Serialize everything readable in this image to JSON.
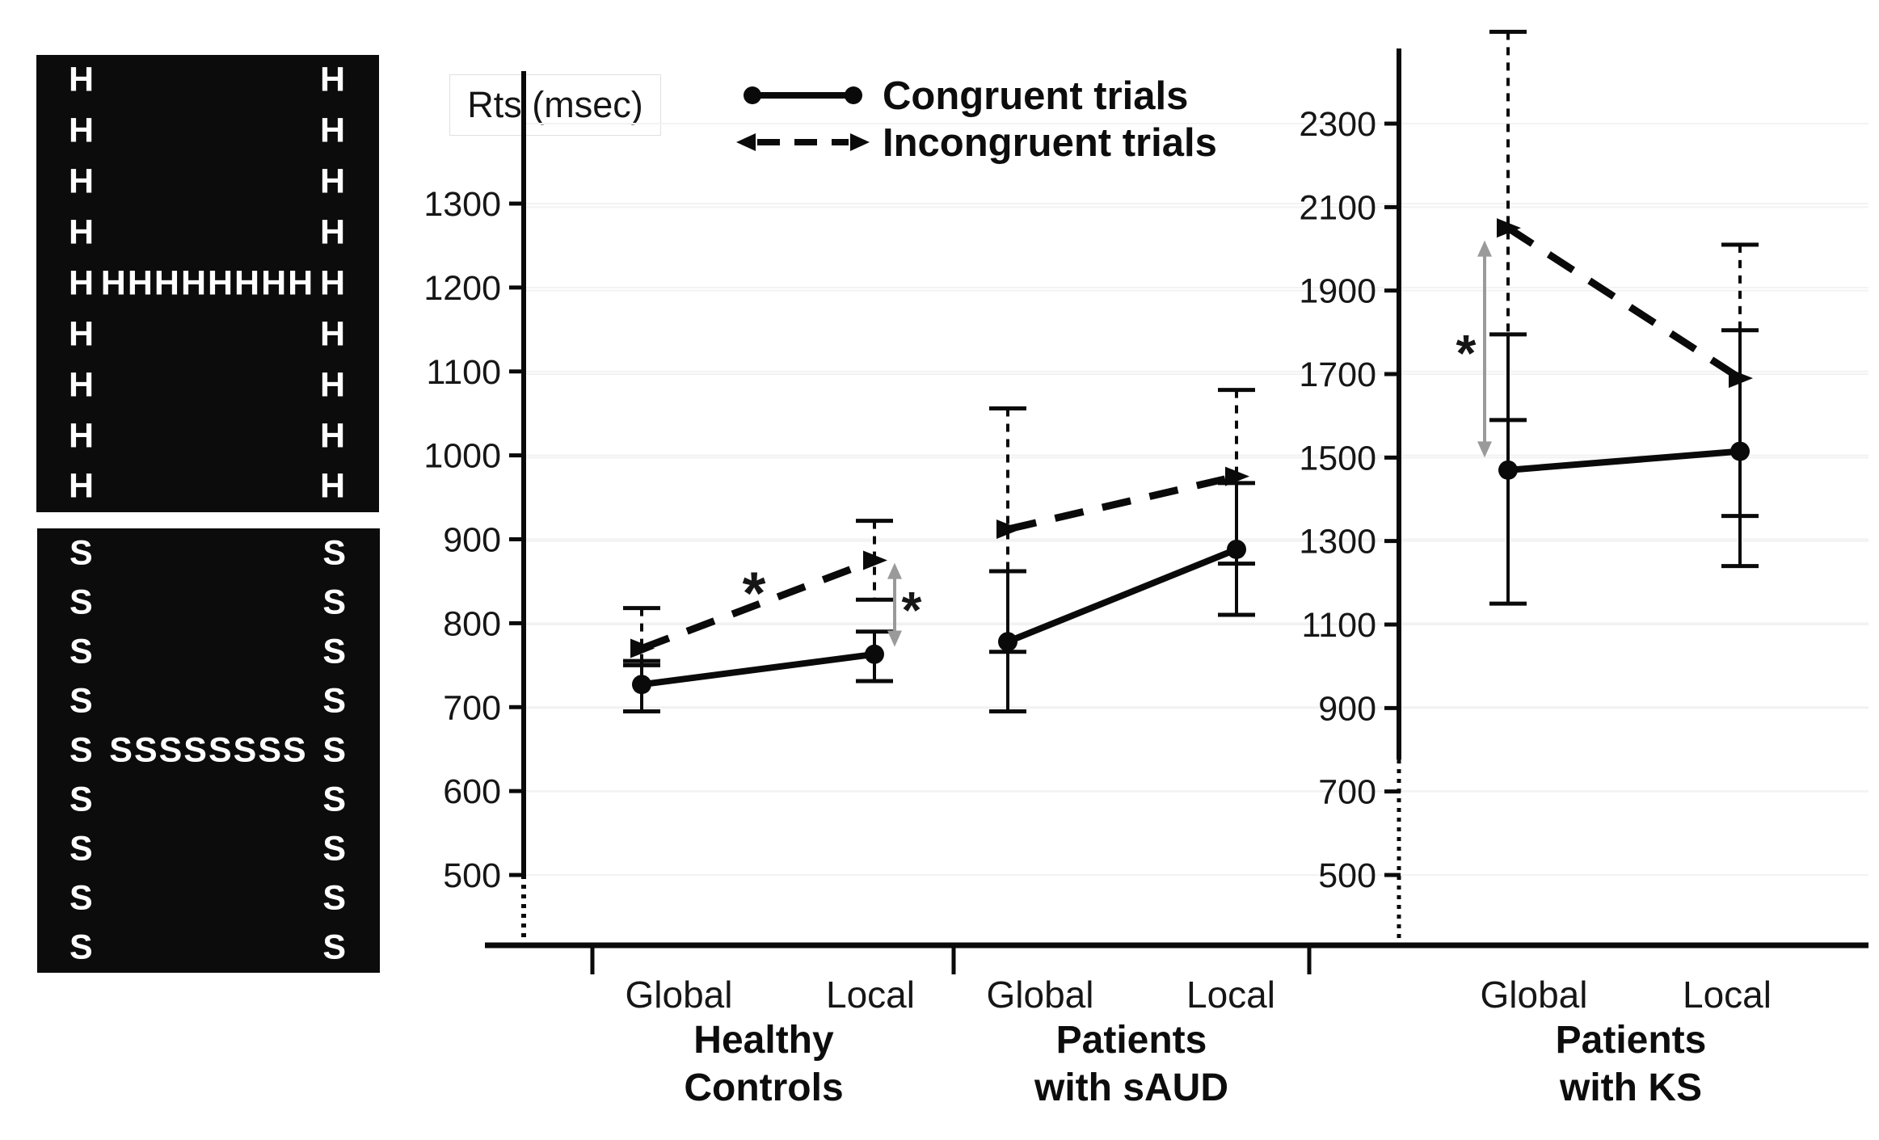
{
  "figure": {
    "background": "#ffffff",
    "line_color": "#0a0a0a",
    "significance_gray": "#9a9a9a",
    "grid_color": "#f2f2f2"
  },
  "stimuli_panels": [
    {
      "name": "global-H-of-local-H",
      "letter": "H",
      "rows": [
        {
          "l": "H",
          "m": "",
          "r": "H"
        },
        {
          "l": "H",
          "m": "",
          "r": "H"
        },
        {
          "l": "H",
          "m": "",
          "r": "H"
        },
        {
          "l": "H",
          "m": "",
          "r": "H"
        },
        {
          "l": "H",
          "m": "HHHHHHHH",
          "r": "H"
        },
        {
          "l": "H",
          "m": "",
          "r": "H"
        },
        {
          "l": "H",
          "m": "",
          "r": "H"
        },
        {
          "l": "H",
          "m": "",
          "r": "H"
        },
        {
          "l": "H",
          "m": "",
          "r": "H"
        }
      ]
    },
    {
      "name": "global-H-of-local-S",
      "letter": "S",
      "rows": [
        {
          "l": "S",
          "m": "",
          "r": "S"
        },
        {
          "l": "S",
          "m": "",
          "r": "S"
        },
        {
          "l": "S",
          "m": "",
          "r": "S"
        },
        {
          "l": "S",
          "m": "",
          "r": "S"
        },
        {
          "l": "S",
          "m": "SSSSSSSS",
          "r": "S"
        },
        {
          "l": "S",
          "m": "",
          "r": "S"
        },
        {
          "l": "S",
          "m": "",
          "r": "S"
        },
        {
          "l": "S",
          "m": "",
          "r": "S"
        },
        {
          "l": "S",
          "m": "",
          "r": "S"
        }
      ]
    }
  ],
  "chart_data": {
    "type": "line",
    "ylabel": "Rts (msec)",
    "y_unit": "msec",
    "grid": "faint-horizontal",
    "legend_position": "top-center",
    "x_conditions": [
      "Global",
      "Local"
    ],
    "left_axis": {
      "ticks": [
        1300,
        1200,
        1100,
        1000,
        900,
        800,
        700,
        600,
        500
      ],
      "range": [
        500,
        1300
      ],
      "broken_below": 500,
      "applies_to": [
        "Healthy Controls",
        "Patients with sAUD"
      ]
    },
    "right_axis": {
      "ticks": [
        2300,
        2100,
        1900,
        1700,
        1500,
        1300,
        1100,
        900,
        700,
        500
      ],
      "range": [
        500,
        2300
      ],
      "broken_below": 780,
      "applies_to": [
        "Patients with KS"
      ]
    },
    "groups": [
      {
        "id": "hc",
        "label_line1": "Healthy",
        "label_line2": "Controls",
        "axis": "left"
      },
      {
        "id": "saud",
        "label_line1": "Patients",
        "label_line2": "with sAUD",
        "axis": "left"
      },
      {
        "id": "ks",
        "label_line1": "Patients",
        "label_line2": "with KS",
        "axis": "right"
      }
    ],
    "series": [
      {
        "name": "Congruent trials",
        "style": "solid",
        "marker": "dot",
        "points": [
          {
            "group_id": "hc",
            "condition": "Global",
            "mean": 727,
            "err_lo": 695,
            "err_hi": 755
          },
          {
            "group_id": "hc",
            "condition": "Local",
            "mean": 763,
            "err_lo": 731,
            "err_hi": 790
          },
          {
            "group_id": "saud",
            "condition": "Global",
            "mean": 778,
            "err_lo": 695,
            "err_hi": 862
          },
          {
            "group_id": "saud",
            "condition": "Local",
            "mean": 888,
            "err_lo": 810,
            "err_hi": 967
          },
          {
            "group_id": "ks",
            "condition": "Global",
            "mean": 1470,
            "err_lo": 1150,
            "err_hi": 1795
          },
          {
            "group_id": "ks",
            "condition": "Local",
            "mean": 1515,
            "err_lo": 1240,
            "err_hi": 1805
          }
        ]
      },
      {
        "name": "Incongruent trials",
        "style": "dashed",
        "marker": "arrow",
        "points": [
          {
            "group_id": "hc",
            "condition": "Global",
            "mean": 770,
            "err_lo": 750,
            "err_hi": 818
          },
          {
            "group_id": "hc",
            "condition": "Local",
            "mean": 875,
            "err_lo": 828,
            "err_hi": 922
          },
          {
            "group_id": "saud",
            "condition": "Global",
            "mean": 912,
            "err_lo": 766,
            "err_hi": 1056
          },
          {
            "group_id": "saud",
            "condition": "Local",
            "mean": 975,
            "err_lo": 871,
            "err_hi": 1078
          },
          {
            "group_id": "ks",
            "condition": "Global",
            "mean": 2050,
            "err_lo": 1590,
            "err_hi": 2520
          },
          {
            "group_id": "ks",
            "condition": "Local",
            "mean": 1690,
            "err_lo": 1360,
            "err_hi": 2010
          }
        ]
      }
    ],
    "annotations": [
      {
        "id": "hc-slope-star",
        "symbol": "*",
        "meaning": "significant effect on incongruent line between Global and Local (Healthy Controls)"
      },
      {
        "id": "hc-local-congruency-star",
        "symbol": "*",
        "meaning": "congruent vs incongruent difference at Local (Healthy Controls)",
        "span_values": [
          772,
          872
        ]
      },
      {
        "id": "ks-global-congruency-star",
        "symbol": "*",
        "meaning": "congruent vs incongruent difference at Global (Patients with KS)",
        "span_values": [
          1500,
          2020
        ]
      }
    ]
  }
}
